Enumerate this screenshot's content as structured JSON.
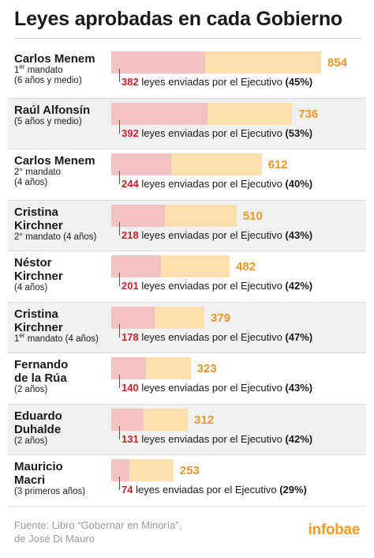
{
  "title": "Leyes aprobadas en cada Gobierno",
  "exec_text": "leyes enviadas por el Ejecutivo",
  "source_lines": [
    "Fuente: Libro “Gobernar en Minoría”,",
    "de José Di Mauro"
  ],
  "brand": "infobae",
  "colors": {
    "total_bar": "#fde0ad",
    "exec_bar": "#f3c3c3",
    "total_label": "#e8972a",
    "exec_number": "#c8222a",
    "brand": "#f39a24"
  },
  "chart_data": {
    "type": "bar",
    "orientation": "horizontal",
    "title": "Leyes aprobadas en cada Gobierno",
    "series": [
      {
        "name": "",
        "key": "total"
      },
      {
        "name": "leyes enviadas por el Ejecutivo",
        "key": "executive"
      }
    ],
    "rows": [
      {
        "name_lines": [
          "Carlos Menem"
        ],
        "period_lines": [
          {
            "pre": "1",
            "sup": "er",
            "post": " mandato"
          },
          {
            "pre": "(6 años y medio)"
          }
        ],
        "total": 854,
        "executive": 382,
        "pct": "(45%)"
      },
      {
        "name_lines": [
          "Raúl Alfonsín"
        ],
        "period_lines": [
          {
            "pre": "(5 años y medio)"
          }
        ],
        "total": 736,
        "executive": 392,
        "pct": "(53%)"
      },
      {
        "name_lines": [
          "Carlos Menem"
        ],
        "period_lines": [
          {
            "pre": "2° mandato"
          },
          {
            "pre": "(4 años)"
          }
        ],
        "total": 612,
        "executive": 244,
        "pct": "(40%)"
      },
      {
        "name_lines": [
          "Cristina",
          "Kirchner"
        ],
        "period_lines": [
          {
            "pre": "2° mandato (4 años)"
          }
        ],
        "total": 510,
        "executive": 218,
        "pct": "(43%)"
      },
      {
        "name_lines": [
          "Néstor",
          "Kirchner"
        ],
        "period_lines": [
          {
            "pre": "(4 años)"
          }
        ],
        "total": 482,
        "executive": 201,
        "pct": "(42%)"
      },
      {
        "name_lines": [
          "Cristina",
          "Kirchner"
        ],
        "period_lines": [
          {
            "pre": "1",
            "sup": "er",
            "post": " mandato (4 años)"
          }
        ],
        "total": 379,
        "executive": 178,
        "pct": "(47%)"
      },
      {
        "name_lines": [
          "Fernando",
          "de la Rúa"
        ],
        "period_lines": [
          {
            "pre": "(2 años)"
          }
        ],
        "total": 323,
        "executive": 140,
        "pct": "(43%)"
      },
      {
        "name_lines": [
          "Eduardo",
          "Duhalde"
        ],
        "period_lines": [
          {
            "pre": "(2 años)"
          }
        ],
        "total": 312,
        "executive": 131,
        "pct": "(42%)"
      },
      {
        "name_lines": [
          "Mauricio",
          "Macri"
        ],
        "period_lines": [
          {
            "pre": "(3 primeros años)"
          }
        ],
        "total": 253,
        "executive": 74,
        "pct": "(29%)"
      }
    ]
  }
}
